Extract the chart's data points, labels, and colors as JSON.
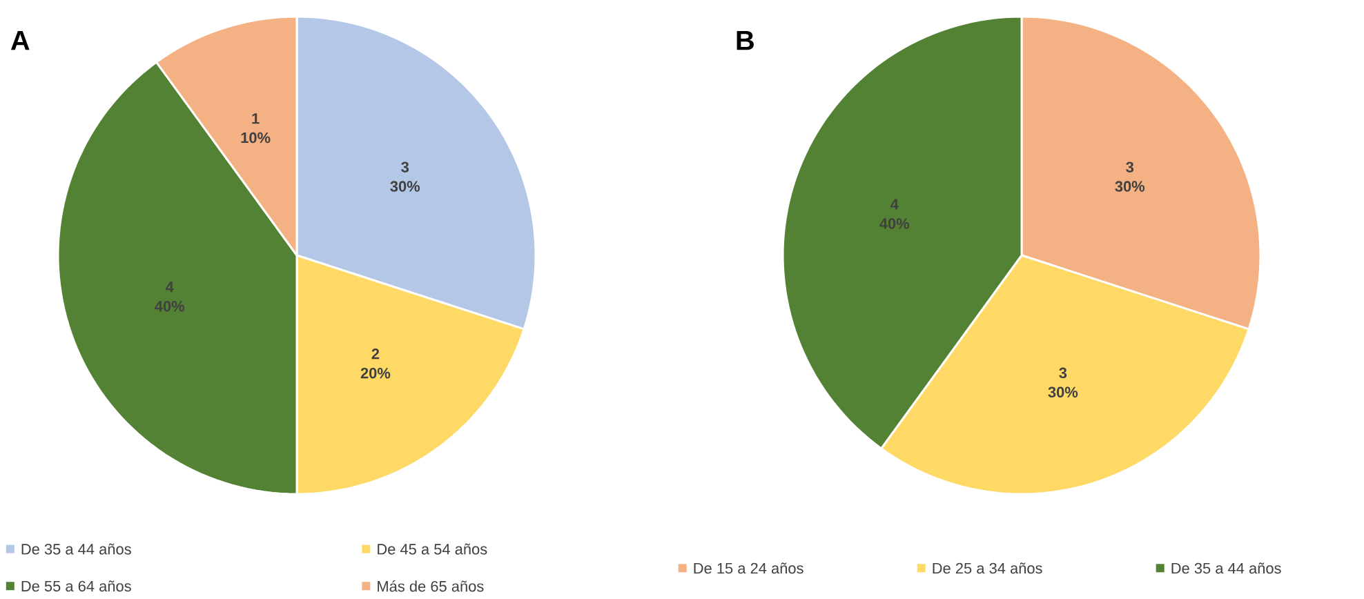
{
  "chart_data": [
    {
      "type": "pie",
      "title": "A",
      "categories": [
        "De 35 a 44 años",
        "De 45 a 54 años",
        "De 55 a 64 años",
        "Más de 65 años"
      ],
      "values": [
        30,
        20,
        40,
        10
      ],
      "value_labels": [
        "30%",
        "20%",
        "40%",
        "10%"
      ],
      "annotations": [
        "3",
        "2",
        "4",
        "1"
      ],
      "data_labels": true,
      "colors": [
        "#b4c7e7",
        "#ffd966",
        "#548235",
        "#f4b183"
      ],
      "legend": "bottom"
    },
    {
      "type": "pie",
      "title": "B",
      "categories": [
        "De 15 a 24 años",
        "De 25 a 34 años",
        "De 35 a 44 años"
      ],
      "values": [
        30,
        30,
        40
      ],
      "value_labels": [
        "30%",
        "30%",
        "40%"
      ],
      "annotations": [
        "3",
        "3",
        "4"
      ],
      "data_labels": true,
      "colors": [
        "#f4b183",
        "#ffd966",
        "#548235"
      ],
      "legend": "bottom"
    }
  ]
}
